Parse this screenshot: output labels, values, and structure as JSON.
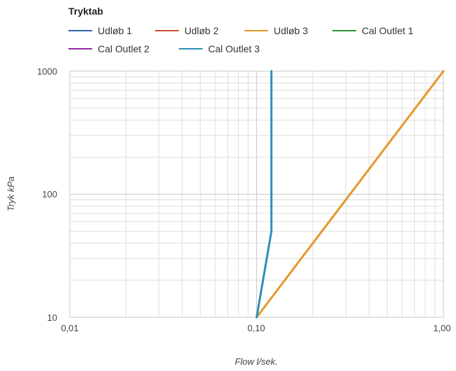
{
  "chart_data": {
    "type": "line",
    "title": "",
    "legend_title": "Tryktab",
    "legend_position": "top-left",
    "xlabel": "Flow l/sek.",
    "ylabel": "Tryk kPa",
    "x_scale": "log",
    "y_scale": "log",
    "xlim": [
      0.01,
      1.0
    ],
    "ylim": [
      10,
      1000
    ],
    "x_ticks": [
      "0,01",
      "0,10",
      "1,00"
    ],
    "y_ticks": [
      "10",
      "100",
      "1000"
    ],
    "grid": true,
    "series": [
      {
        "name": "Udløb 1",
        "color": "#2c64a8",
        "points": []
      },
      {
        "name": "Udløb 2",
        "color": "#c9522a",
        "points": []
      },
      {
        "name": "Udløb 3",
        "color": "#e8962b",
        "points": [
          [
            0.1,
            10
          ],
          [
            1.0,
            1000
          ]
        ]
      },
      {
        "name": "Cal Outlet 1",
        "color": "#2a9236",
        "points": []
      },
      {
        "name": "Cal Outlet 2",
        "color": "#8a2a9c",
        "points": []
      },
      {
        "name": "Cal Outlet 3",
        "color": "#2b8fb8",
        "points": [
          [
            0.1,
            10
          ],
          [
            0.12,
            50
          ],
          [
            0.12,
            1000
          ]
        ]
      }
    ]
  }
}
